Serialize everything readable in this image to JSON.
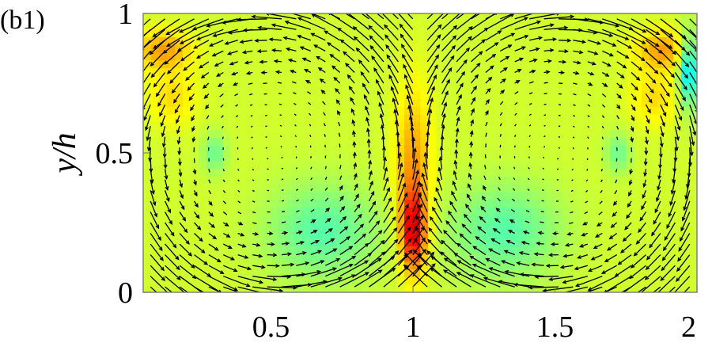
{
  "panel_label": "(b1)",
  "chart_data": {
    "type": "heatmap",
    "title": "",
    "xlabel": "",
    "ylabel": "y/h",
    "xlim": [
      0.05,
      2.0
    ],
    "ylim": [
      0,
      1
    ],
    "x_ticks": [
      0.5,
      1,
      1.5,
      2
    ],
    "x_tick_labels": [
      "0.5",
      "1",
      "1.5",
      "2"
    ],
    "y_ticks": [
      0,
      0.5,
      1
    ],
    "y_tick_labels": [
      "0",
      "0.5",
      "1"
    ],
    "colormap": "jet",
    "background_level": 0.58,
    "colors": {
      "field_base": "#8ee66e",
      "frame": "#808080",
      "arrows": "#000000"
    },
    "features": [
      {
        "kind": "hotspot",
        "x": 1.0,
        "y": 0.22,
        "sx": 0.03,
        "sy": 0.1,
        "level": 0.88
      },
      {
        "kind": "hotspot",
        "x": 1.0,
        "y": 0.45,
        "sx": 0.045,
        "sy": 0.2,
        "level": 0.72
      },
      {
        "kind": "hotspot",
        "x": 0.12,
        "y": 0.87,
        "sx": 0.07,
        "sy": 0.05,
        "level": 0.72
      },
      {
        "kind": "hotspot",
        "x": 1.88,
        "y": 0.87,
        "sx": 0.07,
        "sy": 0.05,
        "level": 0.72
      },
      {
        "kind": "hotspot",
        "x": 0.15,
        "y": 0.7,
        "sx": 0.06,
        "sy": 0.07,
        "level": 0.66
      },
      {
        "kind": "hotspot",
        "x": 1.85,
        "y": 0.7,
        "sx": 0.06,
        "sy": 0.07,
        "level": 0.66
      },
      {
        "kind": "coldspot",
        "x": 1.97,
        "y": 0.8,
        "sx": 0.025,
        "sy": 0.09,
        "level": 0.34
      },
      {
        "kind": "coldspot",
        "x": 0.68,
        "y": 0.22,
        "sx": 0.14,
        "sy": 0.12,
        "level": 0.46
      },
      {
        "kind": "coldspot",
        "x": 1.32,
        "y": 0.22,
        "sx": 0.14,
        "sy": 0.12,
        "level": 0.46
      },
      {
        "kind": "coldspot",
        "x": 0.3,
        "y": 0.5,
        "sx": 0.03,
        "sy": 0.05,
        "level": 0.48
      },
      {
        "kind": "coldspot",
        "x": 1.72,
        "y": 0.5,
        "sx": 0.03,
        "sy": 0.05,
        "level": 0.48
      }
    ],
    "vortices": [
      {
        "x": 0.5,
        "y": 0.5,
        "rx": 0.45,
        "ry": 0.45,
        "direction": "counterclockwise"
      },
      {
        "x": 1.5,
        "y": 0.5,
        "rx": 0.45,
        "ry": 0.45,
        "direction": "clockwise"
      }
    ],
    "arrow_grid": {
      "nx": 38,
      "ny": 26
    }
  }
}
